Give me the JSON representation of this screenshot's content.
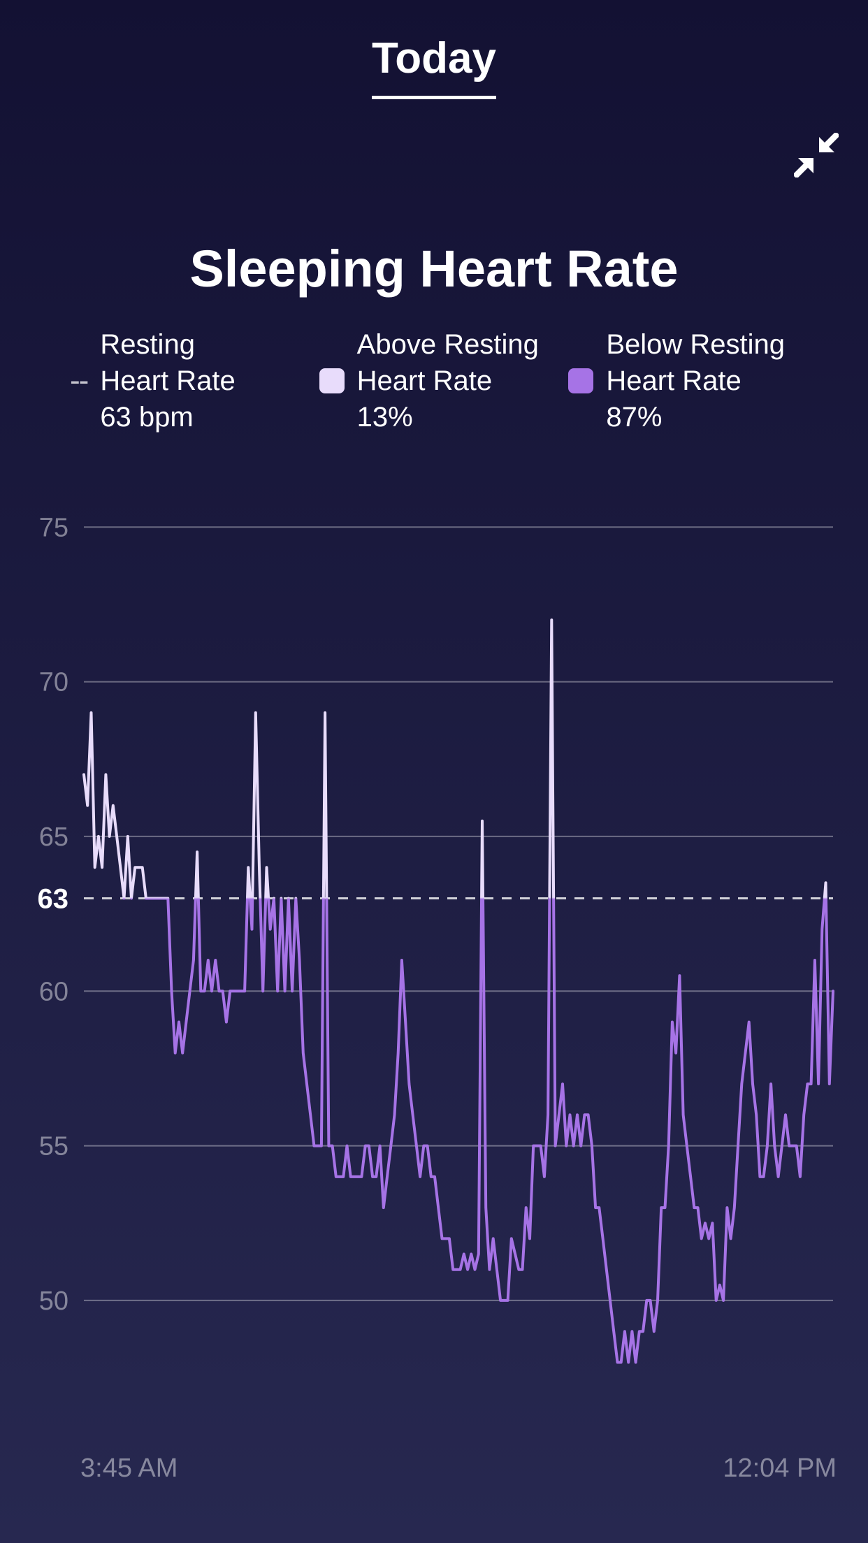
{
  "header": {
    "title": "Today"
  },
  "page": {
    "title": "Sleeping Heart Rate"
  },
  "legend": {
    "resting": {
      "line1": "Resting",
      "line2": "Heart Rate",
      "line3": "63 bpm"
    },
    "above": {
      "line1": "Above Resting",
      "line2": "Heart Rate",
      "line3": "13%",
      "swatch_color": "#e8dcfb"
    },
    "below": {
      "line1": "Below Resting",
      "line2": "Heart Rate",
      "line3": "87%",
      "swatch_color": "#a673e6"
    }
  },
  "chart": {
    "type": "line",
    "background": "transparent",
    "grid_color": "rgba(255,255,255,0.35)",
    "axis_text_color": "rgba(255,255,255,0.45)",
    "line_color_above": "#e8dcfb",
    "line_color_below": "#a673e6",
    "line_width": 4,
    "ylim": [
      46,
      76
    ],
    "yticks": [
      50,
      55,
      60,
      65,
      70,
      75
    ],
    "reference_value": 63,
    "reference_label": "63",
    "x_start_label": "3:45 AM",
    "x_end_label": "12:04 PM",
    "values": [
      67,
      66,
      69,
      64,
      65,
      64,
      67,
      65,
      66,
      65,
      64,
      63,
      65,
      63,
      64,
      64,
      64,
      63,
      63,
      63,
      63,
      63,
      63,
      63,
      60,
      58,
      59,
      58,
      59,
      60,
      61,
      64.5,
      60,
      60,
      61,
      60,
      61,
      60,
      60,
      59,
      60,
      60,
      60,
      60,
      60,
      64,
      62,
      69,
      64,
      60,
      64,
      62,
      63,
      60,
      63,
      60,
      63,
      60,
      63,
      61,
      58,
      57,
      56,
      55,
      55,
      55,
      69,
      55,
      55,
      54,
      54,
      54,
      55,
      54,
      54,
      54,
      54,
      55,
      55,
      54,
      54,
      55,
      53,
      54,
      55,
      56,
      58,
      61,
      59,
      57,
      56,
      55,
      54,
      55,
      55,
      54,
      54,
      53,
      52,
      52,
      52,
      51,
      51,
      51,
      51.5,
      51,
      51.5,
      51,
      51.5,
      65.5,
      53,
      51,
      52,
      51,
      50,
      50,
      50,
      52,
      51.5,
      51,
      51,
      53,
      52,
      55,
      55,
      55,
      54,
      56,
      72,
      55,
      56,
      57,
      55,
      56,
      55,
      56,
      55,
      56,
      56,
      55,
      53,
      53,
      52,
      51,
      50,
      49,
      48,
      48,
      49,
      48,
      49,
      48,
      49,
      49,
      50,
      50,
      49,
      50,
      53,
      53,
      55,
      59,
      58,
      60.5,
      56,
      55,
      54,
      53,
      53,
      52,
      52.5,
      52,
      52.5,
      50,
      50.5,
      50,
      53,
      52,
      53,
      55,
      57,
      58,
      59,
      57,
      56,
      54,
      54,
      55,
      57,
      55,
      54,
      55,
      56,
      55,
      55,
      55,
      54,
      56,
      57,
      57,
      61,
      57,
      62,
      63.5,
      57,
      60
    ]
  }
}
